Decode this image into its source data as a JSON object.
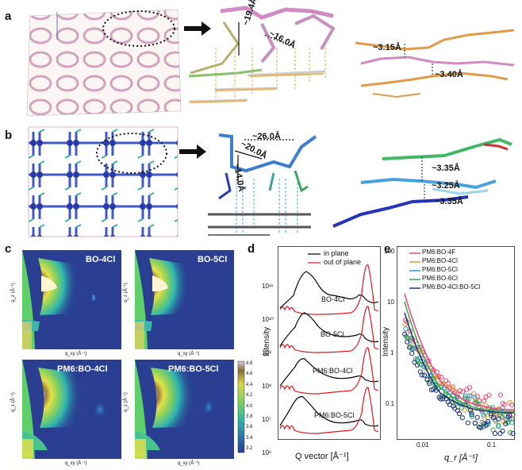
{
  "panels": {
    "a": {
      "label": "a",
      "dist1": "~19.4Å",
      "dist2": "~16.0Å",
      "stack1": "~3.15Å",
      "stack2": "~3.40Å"
    },
    "b": {
      "label": "b",
      "dist1": "~26.0Å",
      "dist2": "~20.0Å",
      "dist3": "~14.0Å",
      "stack1": "~3.35Å",
      "stack2": "~3.25Å",
      "stack3": "~3.35Å"
    },
    "c": {
      "label": "c",
      "maps": [
        {
          "title": "BO-4Cl"
        },
        {
          "title": "BO-5Cl"
        },
        {
          "title": "PM6:BO-4Cl"
        },
        {
          "title": "PM6:BO-5Cl"
        }
      ],
      "xlabel": "q_xy (Å⁻¹)",
      "ylabel": "q_z (Å⁻¹)",
      "colorbar_ticks": [
        "4.8",
        "4.6",
        "4.4",
        "4.2",
        "4.0",
        "3.8",
        "3.6",
        "3.4",
        "3.2"
      ]
    },
    "d": {
      "label": "d",
      "legend": [
        "in plane",
        "out of plane"
      ],
      "legend_colors": [
        "#000000",
        "#e0161c"
      ],
      "curve_labels": [
        "BO-4Cl",
        "BO-5Cl",
        "PM6:BO-4Cl",
        "PM6:BO-5Cl"
      ],
      "ylabel": "Intensity",
      "xlabel": "Q vector [Å⁻¹]",
      "yticks": [
        "10¹¹",
        "10¹⁰",
        "10⁹",
        "10⁸",
        "10⁷",
        "10⁶"
      ]
    },
    "e": {
      "label": "e",
      "legend": [
        "PM6:BO-4F",
        "PM6:BO-4Cl",
        "PM6:BO-5Cl",
        "PM6:BO-6Cl",
        "PM6:BO-4Cl:BO-5Cl"
      ],
      "legend_colors": [
        "#e8467c",
        "#e69a2c",
        "#2a9ad6",
        "#3aa64a",
        "#1b2f7a"
      ],
      "ylabel": "Intensity",
      "xlabel": "q_r [Å⁻¹]",
      "yticks": [
        "100",
        "10",
        "1",
        "0.1"
      ],
      "xticks": [
        "0.01",
        "0.1"
      ]
    }
  }
}
